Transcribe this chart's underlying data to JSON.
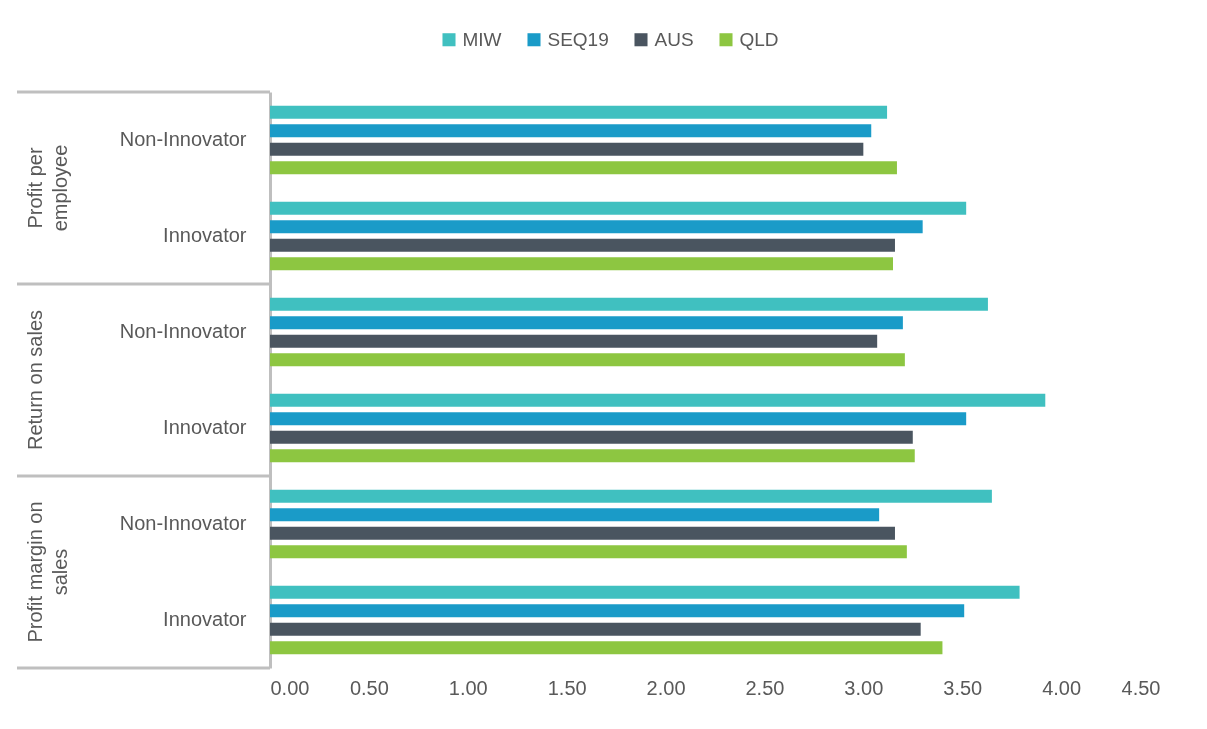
{
  "chart_data": {
    "type": "bar",
    "orientation": "horizontal",
    "categories": [
      "Non-Innovator",
      "Innovator",
      "Non-Innovator",
      "Innovator",
      "Non-Innovator",
      "Innovator"
    ],
    "series": [
      {
        "name": "MIW",
        "color": "#40c0c0",
        "values": [
          3.12,
          3.52,
          3.63,
          3.92,
          3.65,
          3.79
        ]
      },
      {
        "name": "SEQ19",
        "color": "#1a9bc8",
        "values": [
          3.04,
          3.3,
          3.2,
          3.52,
          3.08,
          3.51
        ]
      },
      {
        "name": "AUS",
        "color": "#4a5560",
        "values": [
          3.0,
          3.16,
          3.07,
          3.25,
          3.16,
          3.29
        ]
      },
      {
        "name": "QLD",
        "color": "#8dc641",
        "values": [
          3.17,
          3.15,
          3.21,
          3.26,
          3.22,
          3.4
        ]
      }
    ],
    "xlim": [
      0,
      4.5
    ],
    "xticks": [
      {
        "value": 0,
        "label": "0.00"
      },
      {
        "value": 0.5,
        "label": "0.50"
      },
      {
        "value": 1,
        "label": "1.00"
      },
      {
        "value": 1.5,
        "label": "1.50"
      },
      {
        "value": 2,
        "label": "2.00"
      },
      {
        "value": 2.5,
        "label": "2.50"
      },
      {
        "value": 3,
        "label": "3.00"
      },
      {
        "value": 3.5,
        "label": "3.50"
      },
      {
        "value": 4,
        "label": "4.00"
      },
      {
        "value": 4.5,
        "label": "4.50"
      }
    ],
    "annotations": [
      "Profit per employee",
      "Return on sales",
      "Profit margin on sales"
    ],
    "legend": "top"
  }
}
